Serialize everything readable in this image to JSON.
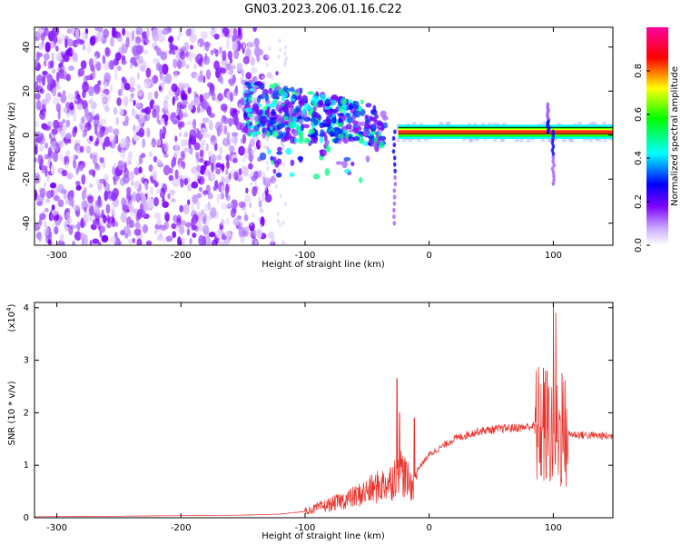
{
  "title": "GN03.2023.206.01.16.C22",
  "chart_data": [
    {
      "type": "heatmap",
      "xlabel": "Height of straight line (km)",
      "ylabel": "Frequency (Hz)",
      "xlim": [
        -318,
        148
      ],
      "ylim": [
        -50,
        49
      ],
      "xticks": [
        -300,
        -200,
        -100,
        0,
        100
      ],
      "yticks": [
        -40,
        -20,
        0,
        20,
        40
      ],
      "colorbar": {
        "label": "Normalized spectral amplitude",
        "range": [
          0.0,
          1.0
        ],
        "ticks": [
          0.0,
          0.2,
          0.4,
          0.6,
          0.8
        ],
        "colormap": [
          "#ffffff",
          "#7b00ff",
          "#0000ff",
          "#00ffff",
          "#00ff00",
          "#ffff00",
          "#ff0000",
          "#ff00a0"
        ]
      },
      "features": {
        "noise_region_x": [
          -318,
          -130
        ],
        "noise_fade_x": [
          -150,
          -115
        ],
        "transition_cluster": {
          "x": [
            -148,
            -35
          ],
          "y_center_start": 12,
          "y_center_end": 4
        },
        "signal_line": {
          "x": [
            -25,
            148
          ],
          "y": 1.5
        },
        "signal_bands": [
          {
            "x": [
              -25,
              148
            ],
            "y": [
              1,
              3
            ]
          }
        ],
        "spikes": [
          {
            "x": -28,
            "y_to": -40
          },
          {
            "x": 100,
            "y_to": -22
          },
          {
            "x": 96,
            "y_to": 14
          }
        ]
      }
    },
    {
      "type": "line",
      "xlabel": "Height of straight line (km)",
      "ylabel": "SNR (10 * v/v)",
      "y_multiplier_label": "(x10",
      "y_multiplier_exp": "4",
      "xlim": [
        -318,
        148
      ],
      "ylim": [
        0,
        4.1
      ],
      "xticks": [
        -300,
        -200,
        -100,
        0,
        100
      ],
      "yticks": [
        0,
        1,
        2,
        3,
        4
      ],
      "series": [
        {
          "color": "#e8302a",
          "envelope_x": [
            -318,
            -250,
            -200,
            -150,
            -120,
            -100,
            -80,
            -60,
            -50,
            -40,
            -30,
            -25,
            -20,
            -15,
            -10,
            0,
            20,
            40,
            60,
            75,
            85,
            95,
            100,
            105,
            110,
            120,
            148
          ],
          "envelope_y": [
            0.02,
            0.03,
            0.04,
            0.05,
            0.07,
            0.12,
            0.25,
            0.4,
            0.5,
            0.6,
            0.7,
            1.0,
            0.8,
            0.6,
            0.9,
            1.2,
            1.5,
            1.65,
            1.7,
            1.72,
            1.75,
            1.7,
            1.6,
            1.6,
            1.6,
            1.58,
            1.55
          ],
          "peaks": [
            {
              "x": -26,
              "y": 2.65
            },
            {
              "x": -24,
              "y": 2.0
            },
            {
              "x": -12,
              "y": 1.9
            },
            {
              "x": 92,
              "y": 2.85
            },
            {
              "x": 95,
              "y": 2.8
            },
            {
              "x": 100,
              "y": 4.1
            },
            {
              "x": 102,
              "y": 3.9
            },
            {
              "x": 107,
              "y": 2.75
            }
          ]
        }
      ]
    }
  ]
}
